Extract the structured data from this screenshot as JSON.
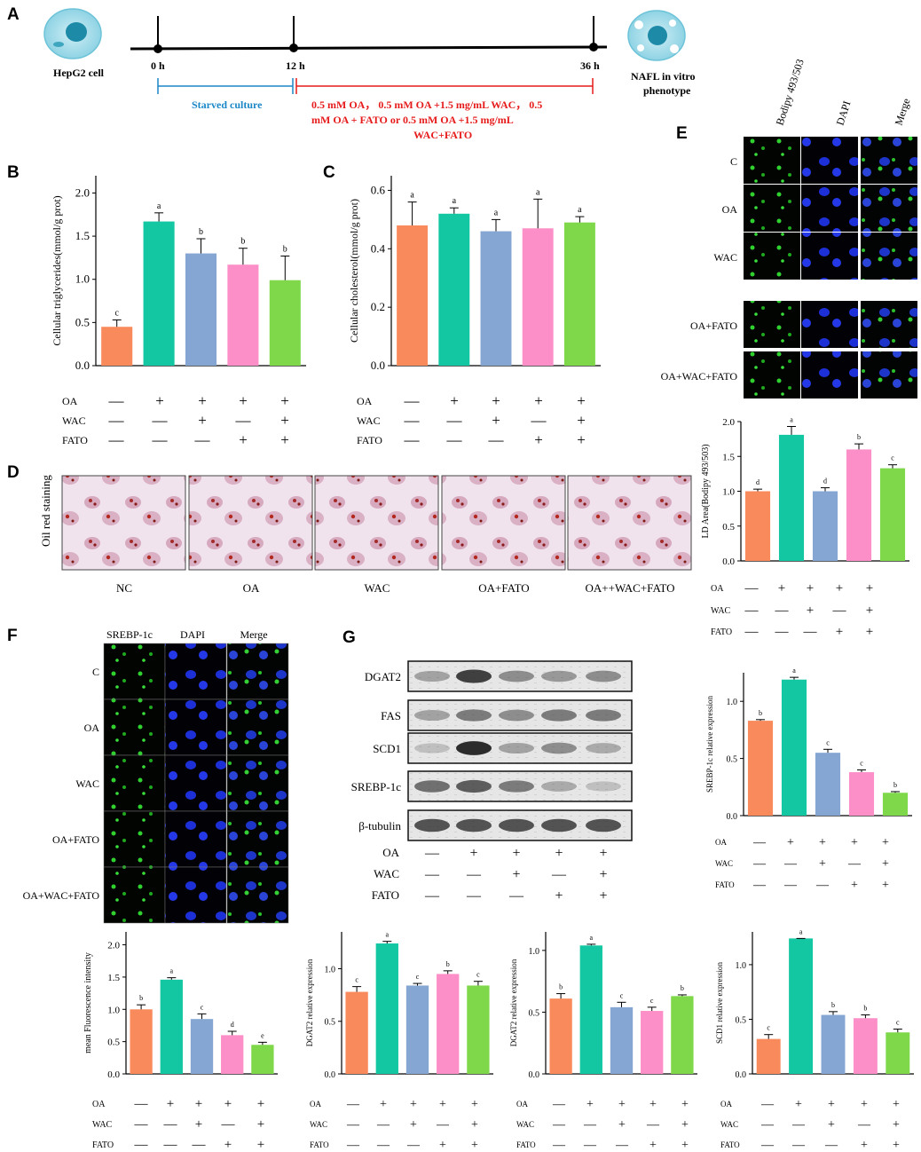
{
  "panel_labels": {
    "a": "A",
    "b": "B",
    "c": "C",
    "d": "D",
    "e": "E",
    "f": "F",
    "g": "G"
  },
  "colors": {
    "nc": "#f98a5b",
    "oa": "#12c7a2",
    "wac": "#85a6d3",
    "oafato": "#fc8fc8",
    "all": "#7ed84a",
    "timeline_blue": "#1b87c7",
    "timeline_red": "#e61b1b"
  },
  "panel_a": {
    "cell_label": "HepG2 cell",
    "t0": "0 h",
    "t1": "12 h",
    "t2": "36 h",
    "starved": "Starved culture",
    "treat1": "0.5 mM OA， 0.5 mM OA +1.5 mg/mL WAC， 0.5",
    "treat2": "mM OA + FATO or 0.5 mM OA +1.5 mg/mL",
    "treat3": "WAC+FATO",
    "pheno1": "NAFL in vitro",
    "pheno2": "phenotype"
  },
  "treatment_rows": {
    "labels": [
      "OA",
      "WAC",
      "FATO"
    ],
    "oa": [
      "—",
      "+",
      "+",
      "+",
      "+"
    ],
    "wac": [
      "—",
      "—",
      "+",
      "—",
      "+"
    ],
    "fato": [
      "—",
      "—",
      "—",
      "+",
      "+"
    ]
  },
  "panel_d": {
    "ylabel": "Oil red staining",
    "captions": [
      "NC",
      "OA",
      "WAC",
      "OA+FATO",
      "OA++WAC+FATO"
    ]
  },
  "panel_e": {
    "headers": [
      "Bodipy 493/503",
      "DAPI",
      "Merge"
    ],
    "rows": [
      "C",
      "OA",
      "WAC",
      "OA+FATO",
      "OA+WAC+FATO"
    ]
  },
  "panel_f": {
    "headers": [
      "SREBP-1c",
      "DAPI",
      "Merge"
    ],
    "rows": [
      "C",
      "OA",
      "WAC",
      "OA+FATO",
      "OA+WAC+FATO"
    ]
  },
  "panel_g": {
    "bands": [
      "DGAT2",
      "FAS",
      "SCD1",
      "SREBP-1c",
      "β-tubulin"
    ]
  },
  "chart_data": [
    {
      "id": "tg",
      "type": "bar",
      "ylabel": "Cellular triglycerides(mmol/g prot)",
      "ylim": [
        0,
        2.2
      ],
      "ticks": [
        0,
        0.5,
        1.0,
        1.5,
        2.0
      ],
      "values": [
        0.45,
        1.67,
        1.3,
        1.17,
        0.99
      ],
      "errors": [
        0.08,
        0.1,
        0.17,
        0.19,
        0.28
      ],
      "letters": [
        "c",
        "a",
        "b",
        "b",
        "b"
      ]
    },
    {
      "id": "tc",
      "type": "bar",
      "ylabel": "Cellular cholesterol(mmol/g prot)",
      "ylim": [
        0,
        0.65
      ],
      "ticks": [
        0,
        0.2,
        0.4,
        0.6
      ],
      "values": [
        0.48,
        0.52,
        0.46,
        0.47,
        0.49
      ],
      "errors": [
        0.08,
        0.02,
        0.04,
        0.1,
        0.02
      ],
      "letters": [
        "a",
        "a",
        "a",
        "a",
        "a"
      ]
    },
    {
      "id": "ld",
      "type": "bar",
      "ylabel": "LD Area(Bodipy 493/503)",
      "ylim": [
        0,
        2.0
      ],
      "ticks": [
        0,
        0.5,
        1.0,
        1.5,
        2.0
      ],
      "values": [
        1.0,
        1.81,
        1.0,
        1.6,
        1.33
      ],
      "errors": [
        0.03,
        0.12,
        0.05,
        0.08,
        0.05
      ],
      "letters": [
        "d",
        "a",
        "d",
        "b",
        "c"
      ]
    },
    {
      "id": "srebp",
      "type": "bar",
      "ylabel": "SREBP-1c relative expression",
      "ylim": [
        0,
        1.25
      ],
      "ticks": [
        0,
        0.5,
        1.0
      ],
      "values": [
        0.83,
        1.19,
        0.55,
        0.38,
        0.2
      ],
      "errors": [
        0.01,
        0.02,
        0.03,
        0.02,
        0.01
      ],
      "letters": [
        "b",
        "a",
        "c",
        "c",
        "b"
      ]
    },
    {
      "id": "mfi",
      "type": "bar",
      "ylabel": "mean Fluorescence intensity",
      "ylim": [
        0,
        2.2
      ],
      "ticks": [
        0,
        0.5,
        1.0,
        1.5,
        2.0
      ],
      "values": [
        1.0,
        1.46,
        0.85,
        0.6,
        0.45
      ],
      "errors": [
        0.07,
        0.03,
        0.08,
        0.06,
        0.04
      ],
      "letters": [
        "b",
        "a",
        "c",
        "d",
        "e"
      ]
    },
    {
      "id": "dgat2",
      "type": "bar",
      "ylabel": "DGAT2 relative expression",
      "ylim": [
        0,
        1.35
      ],
      "ticks": [
        0,
        0.5,
        1.0
      ],
      "values": [
        0.78,
        1.24,
        0.84,
        0.95,
        0.84
      ],
      "errors": [
        0.05,
        0.02,
        0.02,
        0.03,
        0.04
      ],
      "letters": [
        "c",
        "a",
        "c",
        "b",
        "c"
      ]
    },
    {
      "id": "dgat2b",
      "type": "bar",
      "ylabel": "DGAT2 relative expression",
      "ylim": [
        0,
        1.15
      ],
      "ticks": [
        0,
        0.5,
        1.0
      ],
      "values": [
        0.61,
        1.04,
        0.54,
        0.51,
        0.63
      ],
      "errors": [
        0.04,
        0.01,
        0.04,
        0.03,
        0.01
      ],
      "letters": [
        "b",
        "a",
        "c",
        "c",
        "b"
      ]
    },
    {
      "id": "scd1",
      "type": "bar",
      "ylabel": "SCD1 relative expression",
      "ylim": [
        0,
        1.3
      ],
      "ticks": [
        0,
        0.5,
        1.0
      ],
      "values": [
        0.32,
        1.24,
        0.54,
        0.51,
        0.38
      ],
      "errors": [
        0.04,
        0.0,
        0.03,
        0.03,
        0.03
      ],
      "letters": [
        "c",
        "a",
        "b",
        "b",
        "c"
      ]
    }
  ]
}
